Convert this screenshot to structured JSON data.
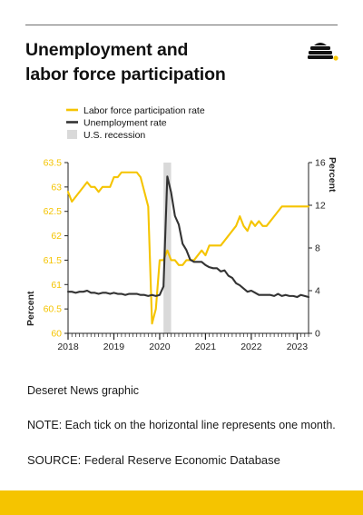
{
  "header": {
    "title_line1": "Unemployment and",
    "title_line2": "labor force participation"
  },
  "logo": {
    "icon": "beehive-icon",
    "color": "#111111",
    "accent": "#f5c400"
  },
  "colors": {
    "lfpr": "#f5c400",
    "unemployment": "#333333",
    "recession": "#d9d9d9",
    "left_axis_text": "#f5c400",
    "right_axis_text": "#222222",
    "bottom_bar": "#f5c400"
  },
  "chart_data": {
    "type": "line",
    "x_start": "2018-01",
    "x_end": "2023-04",
    "x_ticks": [
      "2018",
      "2019",
      "2020",
      "2021",
      "2022",
      "2023"
    ],
    "legend": {
      "placement": "top-left",
      "entries": [
        {
          "label": "Labor force participation rate",
          "swatch": "line",
          "color": "#f5c400"
        },
        {
          "label": "Unemployment rate",
          "swatch": "line",
          "color": "#333333"
        },
        {
          "label": "U.S. recession",
          "swatch": "box",
          "color": "#d9d9d9"
        }
      ]
    },
    "y_left": {
      "label": "Percent",
      "min": 60,
      "max": 63.5,
      "ticks": [
        "60",
        "60.5",
        "61",
        "61.5",
        "62",
        "62.5",
        "63",
        "63.5"
      ],
      "color": "#f5c400"
    },
    "y_right": {
      "label": "Percent",
      "min": 0,
      "max": 16,
      "ticks": [
        "0",
        "4",
        "8",
        "12",
        "16"
      ]
    },
    "recession": {
      "start": "2020-02",
      "end": "2020-04",
      "label": "U.S. recession"
    },
    "grid": false,
    "series": [
      {
        "name": "Labor force participation rate",
        "axis": "left",
        "color": "#f5c400",
        "values": [
          62.9,
          62.7,
          62.8,
          62.9,
          63.0,
          63.1,
          63.0,
          63.0,
          62.9,
          63.0,
          63.0,
          63.0,
          63.2,
          63.2,
          63.3,
          63.3,
          63.3,
          63.3,
          63.3,
          63.2,
          62.9,
          62.6,
          60.2,
          60.5,
          61.5,
          61.5,
          61.7,
          61.5,
          61.5,
          61.4,
          61.4,
          61.5,
          61.5,
          61.5,
          61.6,
          61.7,
          61.6,
          61.8,
          61.8,
          61.8,
          61.8,
          61.9,
          62.0,
          62.1,
          62.2,
          62.4,
          62.2,
          62.1,
          62.3,
          62.2,
          62.3,
          62.2,
          62.2,
          62.3,
          62.4,
          62.5,
          62.6,
          62.6,
          62.6,
          62.6,
          62.6,
          62.6,
          62.6,
          62.6
        ]
      },
      {
        "name": "Unemployment rate",
        "axis": "right",
        "color": "#333333",
        "values": [
          3.9,
          3.9,
          3.8,
          3.9,
          3.9,
          4.0,
          3.8,
          3.8,
          3.7,
          3.8,
          3.8,
          3.7,
          3.8,
          3.7,
          3.7,
          3.6,
          3.7,
          3.7,
          3.7,
          3.6,
          3.6,
          3.5,
          3.6,
          3.5,
          3.6,
          4.4,
          14.7,
          13.2,
          11.0,
          10.2,
          8.4,
          7.8,
          6.9,
          6.7,
          6.7,
          6.7,
          6.4,
          6.2,
          6.1,
          6.1,
          5.8,
          5.9,
          5.4,
          5.2,
          4.7,
          4.5,
          4.2,
          3.9,
          4.0,
          3.8,
          3.6,
          3.6,
          3.6,
          3.6,
          3.5,
          3.7,
          3.5,
          3.6,
          3.5,
          3.5,
          3.4,
          3.6,
          3.5,
          3.4
        ]
      }
    ]
  },
  "footer": {
    "credit": "Deseret News graphic",
    "note": "NOTE: Each tick on the horizontal line represents one month.",
    "source": "SOURCE: Federal Reserve Economic Database"
  }
}
